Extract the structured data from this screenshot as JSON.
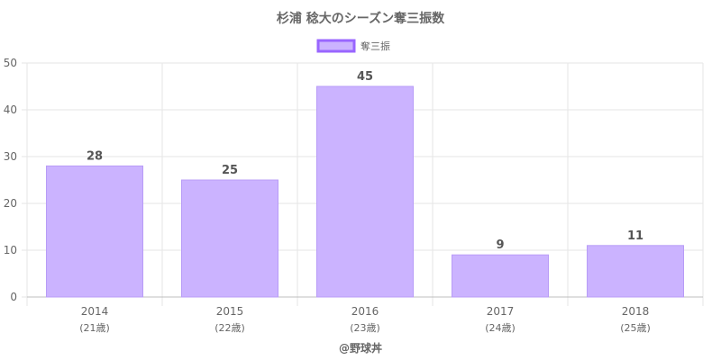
{
  "chart_data": {
    "type": "bar",
    "title": "杉浦 稔大のシーズン奪三振数",
    "categories": [
      "2014",
      "2015",
      "2016",
      "2017",
      "2018"
    ],
    "sublabels": [
      "(21歳)",
      "(22歳)",
      "(23歳)",
      "(24歳)",
      "(25歳)"
    ],
    "series": [
      {
        "name": "奪三振",
        "values": [
          28,
          25,
          45,
          9,
          11
        ]
      }
    ],
    "ylim": [
      0,
      50
    ],
    "yticks": [
      0,
      10,
      20,
      30,
      40,
      50
    ],
    "grid": true,
    "legend_position": "top",
    "data_labels": true,
    "colors": {
      "bar_fill": "#cbb3ff",
      "bar_stroke": "#b89cf7",
      "legend_stroke": "#9966ff",
      "grid": "#e5e5e5",
      "text": "#666666"
    }
  },
  "credit": "@野球丼"
}
